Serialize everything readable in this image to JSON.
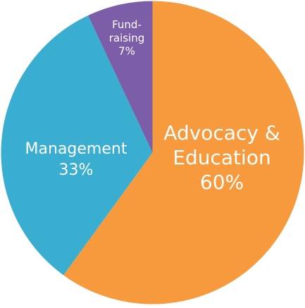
{
  "chart_data": {
    "type": "pie",
    "categories": [
      "Advocacy &\nEducation",
      "Management",
      "Fund-\nraising"
    ],
    "values": [
      60,
      33,
      7
    ],
    "value_labels": [
      "60%",
      "33%",
      "7%"
    ],
    "colors": [
      "#f79a3e",
      "#3aaed0",
      "#7b5ea7"
    ]
  }
}
